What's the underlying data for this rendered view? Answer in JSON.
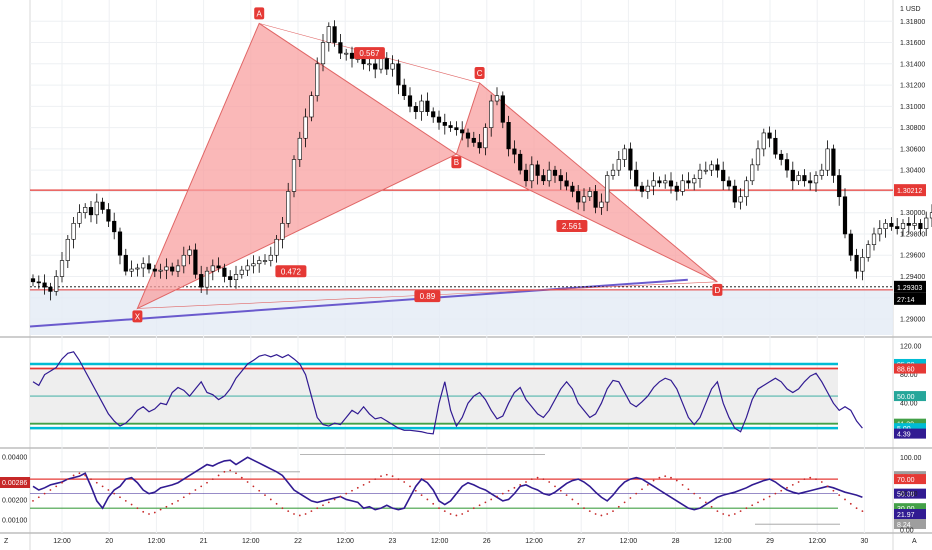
{
  "chart_data": [
    {
      "type": "candlestick",
      "name": "price",
      "y_axis": {
        "currency": "USD",
        "ticks": [
          "1.31800",
          "1.31600",
          "1.31400",
          "1.31200",
          "1.31000",
          "1.30800",
          "1.30600",
          "1.30400",
          "1.30200",
          "1.30000",
          "1.29800",
          "1.29600",
          "1.29400",
          "1.29200",
          "1.29000"
        ]
      },
      "ylim": [
        1.2885,
        1.32
      ],
      "close_series": [
        1.2935,
        1.2934,
        1.293,
        1.2926,
        1.294,
        1.2955,
        1.2975,
        1.299,
        1.3,
        1.3005,
        1.2998,
        1.301,
        1.3003,
        1.2992,
        1.2982,
        1.296,
        1.2945,
        1.2947,
        1.2948,
        1.2952,
        1.2947,
        1.2945,
        1.2946,
        1.2949,
        1.2945,
        1.295,
        1.296,
        1.2965,
        1.2942,
        1.293,
        1.2945,
        1.295,
        1.2948,
        1.294,
        1.2937,
        1.2942,
        1.2946,
        1.295,
        1.2952,
        1.2955,
        1.2955,
        1.296,
        1.2975,
        1.299,
        1.302,
        1.305,
        1.307,
        1.309,
        1.311,
        1.314,
        1.316,
        1.3175,
        1.316,
        1.315,
        1.315,
        1.3145,
        1.3145,
        1.314,
        1.314,
        1.3135,
        1.3145,
        1.3135,
        1.314,
        1.312,
        1.311,
        1.31,
        1.3095,
        1.3105,
        1.3095,
        1.309,
        1.3085,
        1.3082,
        1.308,
        1.3078,
        1.3075,
        1.307,
        1.3066,
        1.3061,
        1.308,
        1.3105,
        1.311,
        1.3085,
        1.306,
        1.3055,
        1.304,
        1.303,
        1.3045,
        1.3035,
        1.303,
        1.304,
        1.3035,
        1.303,
        1.3025,
        1.302,
        1.301,
        1.3015,
        1.302,
        1.3005,
        1.301,
        1.3035,
        1.304,
        1.305,
        1.306,
        1.304,
        1.3025,
        1.302,
        1.3025,
        1.303,
        1.3028,
        1.303,
        1.3025,
        1.302,
        1.303,
        1.3028,
        1.3032,
        1.304,
        1.304,
        1.3045,
        1.304,
        1.303,
        1.3025,
        1.301,
        1.3015,
        1.303,
        1.3045,
        1.306,
        1.3075,
        1.307,
        1.3055,
        1.305,
        1.304,
        1.303,
        1.3035,
        1.303,
        1.3028,
        1.3035,
        1.304,
        1.306,
        1.3035,
        1.3015,
        1.298,
        1.296,
        1.2945,
        1.2958,
        1.297,
        1.298,
        1.2985,
        1.299,
        1.2987,
        1.2985,
        1.299,
        1.2988,
        1.299,
        1.2985,
        1.2995,
        1.3,
        1.2992,
        1.2995,
        1.3003,
        1.3015,
        1.302,
        1.3,
        1.299,
        1.295,
        1.294,
        1.293
      ],
      "horizontal_levels": [
        {
          "value": 1.30212,
          "label": "1.30212",
          "color": "#e53935"
        },
        {
          "value": 1.29303,
          "label": "1.29303",
          "color": "#000000"
        }
      ],
      "price_tag_extra": "27:14",
      "pattern": {
        "points": [
          {
            "name": "X",
            "bar": 18,
            "value": 1.291
          },
          {
            "name": "A",
            "bar": 39,
            "value": 1.3178
          },
          {
            "name": "B",
            "bar": 73,
            "value": 1.3055
          },
          {
            "name": "C",
            "bar": 77,
            "value": 1.3122
          },
          {
            "name": "D",
            "bar": 118,
            "value": 1.2935
          }
        ],
        "ratios": [
          {
            "between": [
              "A",
              "C"
            ],
            "label": "0.567"
          },
          {
            "between": [
              "X",
              "B"
            ],
            "label": "0.472"
          },
          {
            "between": [
              "B",
              "D"
            ],
            "label": "2.561"
          },
          {
            "between": [
              "X",
              "D"
            ],
            "label": "0.89"
          }
        ],
        "fill_color": "#f8a0a0",
        "stroke_color": "#e06666"
      },
      "trendline": {
        "from": {
          "bar": 0,
          "value": 1.2893
        },
        "to": {
          "bar": 106,
          "value": 1.2937
        },
        "color": "#6a5acd"
      }
    },
    {
      "type": "line",
      "name": "oscillator1",
      "y_axis": {
        "ticks": [
          "120.00",
          "80.00",
          "40.00",
          "0.00"
        ]
      },
      "ylim": [
        -20,
        130
      ],
      "levels": [
        {
          "value": 95.0,
          "label": "95.00",
          "color": "#00bcd4"
        },
        {
          "value": 88.6,
          "label": "88.60",
          "color": "#e53935"
        },
        {
          "value": 50.0,
          "label": "50.00",
          "color": "#26a69a"
        },
        {
          "value": 11.3,
          "label": "11.30",
          "color": "#43a047"
        },
        {
          "value": 5.0,
          "label": "5.00",
          "color": "#00bcd4"
        }
      ],
      "last_value": {
        "value": 4.39,
        "label": "4.39",
        "color": "#311b92"
      },
      "series": [
        {
          "values": [
            70,
            65,
            80,
            85,
            90,
            102,
            110,
            112,
            100,
            85,
            70,
            55,
            40,
            25,
            15,
            8,
            12,
            20,
            30,
            35,
            28,
            32,
            40,
            38,
            55,
            62,
            58,
            50,
            60,
            70,
            55,
            52,
            45,
            50,
            60,
            75,
            85,
            95,
            100,
            106,
            108,
            105,
            108,
            104,
            108,
            102,
            95,
            80,
            50,
            20,
            10,
            8,
            12,
            10,
            20,
            30,
            25,
            35,
            25,
            18,
            20,
            15,
            10,
            5,
            2,
            2,
            1,
            0,
            -2,
            -3,
            40,
            70,
            30,
            8,
            20,
            40,
            50,
            55,
            45,
            30,
            18,
            22,
            40,
            55,
            62,
            45,
            35,
            25,
            20,
            30,
            45,
            60,
            70,
            60,
            40,
            30,
            20,
            25,
            40,
            60,
            72,
            70,
            55,
            40,
            35,
            42,
            50,
            62,
            70,
            75,
            72,
            60,
            40,
            20,
            10,
            20,
            40,
            60,
            70,
            40,
            20,
            5,
            0,
            20,
            45,
            60,
            65,
            70,
            75,
            70,
            60,
            55,
            60,
            70,
            78,
            82,
            70,
            55,
            40,
            30,
            35,
            30,
            15,
            5
          ]
        }
      ]
    },
    {
      "type": "line",
      "name": "oscillator2",
      "y_axis_left": {
        "ticks": [
          "0.00400",
          "0.00200",
          "0.00100"
        ]
      },
      "left_tag": "0.00286",
      "y_axis_right": {
        "ticks": [
          "100.00",
          "50.00",
          "0.00"
        ]
      },
      "ylim": [
        0,
        110
      ],
      "levels": [
        {
          "value": 74.05,
          "label": "74.05",
          "color": "#9e9e9e"
        },
        {
          "value": 70.0,
          "label": "70.00",
          "color": "#e53935"
        },
        {
          "value": 50.0,
          "label": "50.00",
          "color": "#311b92"
        },
        {
          "value": 30.0,
          "label": "30.00",
          "color": "#43a047"
        },
        {
          "value": 21.97,
          "label": "21.97",
          "color": "#311b92"
        },
        {
          "value": 8.24,
          "label": "8.24",
          "color": "#9e9e9e"
        }
      ],
      "series": [
        {
          "name": "",
          "values": [
            60,
            55,
            58,
            62,
            64,
            66,
            70,
            72,
            74,
            78,
            60,
            40,
            30,
            45,
            55,
            60,
            70,
            72,
            65,
            55,
            50,
            52,
            58,
            60,
            62,
            65,
            70,
            75,
            80,
            85,
            90,
            88,
            92,
            95,
            96,
            90,
            95,
            100,
            96,
            92,
            88,
            84,
            80,
            75,
            65,
            55,
            50,
            45,
            40,
            38,
            40,
            42,
            44,
            46,
            42,
            40,
            38,
            30,
            32,
            28,
            30,
            34,
            30,
            28,
            30,
            45,
            60,
            70,
            65,
            55,
            40,
            35,
            40,
            50,
            60,
            65,
            62,
            58,
            55,
            50,
            45,
            40,
            42,
            50,
            60,
            62,
            58,
            55,
            50,
            48,
            52,
            58,
            64,
            68,
            70,
            66,
            60,
            52,
            45,
            40,
            48,
            58,
            66,
            70,
            72,
            70,
            65,
            60,
            55,
            50,
            45,
            40,
            35,
            30,
            28,
            30,
            35,
            40,
            45,
            48,
            50,
            52,
            55,
            58,
            62,
            65,
            68,
            70,
            66,
            60,
            55,
            52,
            50,
            52,
            54,
            56,
            58,
            60,
            58,
            55,
            52,
            50,
            48,
            45
          ]
        },
        {
          "name": "",
          "values": [
            40,
            45,
            50,
            55,
            60,
            65,
            70,
            75,
            78,
            75,
            70,
            65,
            60,
            55,
            50,
            45,
            40,
            35,
            30,
            25,
            22,
            24,
            28,
            32,
            36,
            40,
            45,
            50,
            55,
            60,
            65,
            70,
            75,
            80,
            82,
            78,
            72,
            66,
            60,
            54,
            48,
            42,
            36,
            30,
            26,
            22,
            20,
            22,
            26,
            30,
            34,
            38,
            42,
            46,
            50,
            54,
            58,
            62,
            66,
            70,
            74,
            76,
            74,
            70,
            66,
            60,
            54,
            48,
            42,
            36,
            30,
            26,
            22,
            20,
            22,
            26,
            30,
            34,
            38,
            42,
            46,
            50,
            54,
            58,
            62,
            66,
            70,
            72,
            70,
            66,
            60,
            54,
            48,
            42,
            36,
            30,
            26,
            22,
            20,
            22,
            26,
            32,
            38,
            44,
            50,
            56,
            62,
            68,
            72,
            74,
            72,
            68,
            62,
            56,
            50,
            44,
            38,
            32,
            26,
            22,
            20,
            22,
            26,
            30,
            34,
            38,
            42,
            46,
            50,
            54,
            58,
            62,
            66,
            70,
            72,
            70,
            66,
            60,
            54,
            48,
            42,
            36,
            30,
            26
          ]
        }
      ]
    }
  ],
  "x_axis": {
    "ticks": [
      "12:00",
      "20",
      "12:00",
      "21",
      "12:00",
      "22",
      "12:00",
      "23",
      "12:00",
      "26",
      "12:00",
      "27",
      "12:00",
      "28",
      "12:00",
      "29",
      "12:00",
      "30"
    ]
  },
  "corner_labels": {
    "left": "Z",
    "right": "A"
  },
  "colors": {
    "bull": "#ffffff",
    "bear": "#000000",
    "grid": "#eef0f3",
    "osc_line": "#311b92",
    "osc_dots": "#c62828"
  }
}
